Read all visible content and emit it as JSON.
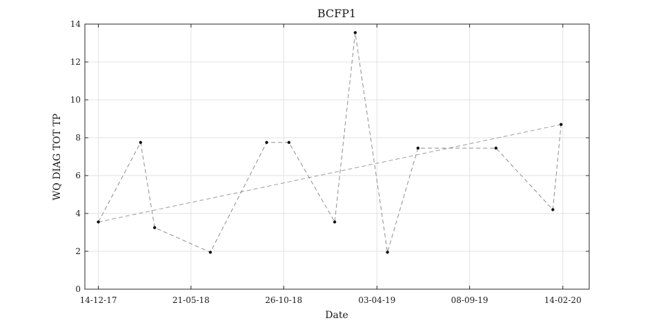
{
  "chart_data": {
    "type": "line",
    "title": "BCFP1",
    "xlabel": "Date",
    "ylabel": "WQ DIAG TOT TP",
    "x_tick_labels": [
      "14-12-17",
      "21-05-18",
      "26-10-18",
      "03-04-19",
      "08-09-19",
      "14-02-20"
    ],
    "x_tick_dates": [
      "2017-12-14",
      "2018-05-21",
      "2018-10-26",
      "2019-04-03",
      "2019-09-08",
      "2020-02-14"
    ],
    "xlim": [
      "2017-11-21",
      "2020-03-30"
    ],
    "ylim": [
      0,
      14
    ],
    "y_ticks": [
      0,
      2,
      4,
      6,
      8,
      10,
      12,
      14
    ],
    "grid": true,
    "series": [
      {
        "x": [
          "2017-12-14",
          "2018-02-24",
          "2018-03-20",
          "2018-06-23",
          "2018-09-27",
          "2018-11-04",
          "2019-01-21",
          "2019-02-25",
          "2019-04-21",
          "2019-06-12",
          "2019-10-23",
          "2020-01-28",
          "2020-02-11"
        ],
        "values": [
          3.55,
          7.75,
          3.25,
          1.95,
          7.75,
          7.75,
          3.55,
          13.55,
          1.95,
          7.45,
          7.45,
          4.2,
          8.7
        ]
      },
      {
        "x": [
          "2017-12-14",
          "2020-02-11"
        ],
        "values": [
          3.55,
          8.7
        ]
      }
    ]
  }
}
